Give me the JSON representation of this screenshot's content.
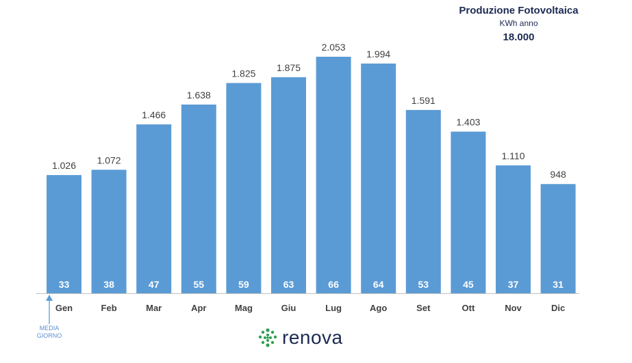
{
  "title_block": {
    "title": "Produzione Fotovoltaica",
    "subtitle": "KWh anno",
    "total": "18.000"
  },
  "chart_data": {
    "type": "bar",
    "categories": [
      "Gen",
      "Feb",
      "Mar",
      "Apr",
      "Mag",
      "Giu",
      "Lug",
      "Ago",
      "Set",
      "Ott",
      "Nov",
      "Dic"
    ],
    "values": [
      1026,
      1072,
      1466,
      1638,
      1825,
      1875,
      2053,
      1994,
      1591,
      1403,
      1110,
      948
    ],
    "value_labels": [
      "1.026",
      "1.072",
      "1.466",
      "1.638",
      "1.825",
      "1.875",
      "2.053",
      "1.994",
      "1.591",
      "1.403",
      "1.110",
      "948"
    ],
    "daily_average": [
      33,
      38,
      47,
      55,
      59,
      63,
      66,
      64,
      53,
      45,
      37,
      31
    ],
    "title": "Produzione Fotovoltaica",
    "xlabel": "",
    "ylabel": "",
    "ylim": [
      0,
      2053
    ],
    "bar_color": "#5b9bd5",
    "inner_label_color": "#ffffff",
    "grid": false,
    "legend": "none"
  },
  "annotation": {
    "media_line1": "MEDIA",
    "media_line2": "GIORNO",
    "arrow_color": "#5b9bd5"
  },
  "brand": {
    "name": "renova",
    "logo_color": "#2e9e52",
    "icon": "renova-logo-icon"
  }
}
